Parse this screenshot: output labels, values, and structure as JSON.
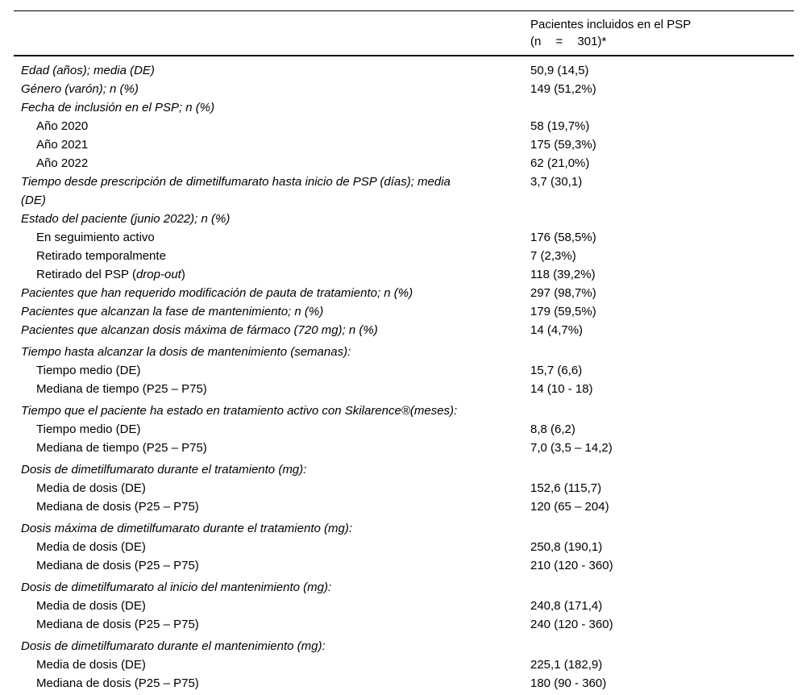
{
  "table": {
    "header": {
      "col2_line1": "Pacientes incluidos en el PSP",
      "col2_line2": "(n = 301)*"
    },
    "rows": [
      {
        "label": "Edad (años); media (DE)",
        "value": "50,9 (14,5)",
        "level": "main"
      },
      {
        "label": "Género (varón); n (%)",
        "value": "149 (51,2%)",
        "level": "main"
      },
      {
        "label": "Fecha de inclusión en el PSP; n (%)",
        "value": "",
        "level": "main"
      },
      {
        "label": "Año 2020",
        "value": "58 (19,7%)",
        "level": "sub"
      },
      {
        "label": "Año 2021",
        "value": "175 (59,3%)",
        "level": "sub"
      },
      {
        "label": "Año 2022",
        "value": "62 (21,0%)",
        "level": "sub"
      },
      {
        "label": "Tiempo desde prescripción de dimetilfumarato hasta inicio de PSP (días); media\n(DE)",
        "value": "3,7 (30,1)",
        "level": "main"
      },
      {
        "label": "Estado del paciente (junio 2022); n (%)",
        "value": "",
        "level": "main"
      },
      {
        "label": "En seguimiento activo",
        "value": "176 (58,5%)",
        "level": "sub"
      },
      {
        "label": "Retirado temporalmente",
        "value": "7 (2,3%)",
        "level": "sub"
      },
      {
        "label": "Retirado del PSP (drop-out)",
        "value": "118 (39,2%)",
        "level": "sub",
        "italic_part": "drop-out"
      },
      {
        "label": "Pacientes que han requerido modificación de pauta de tratamiento; n (%)",
        "value": "297 (98,7%)",
        "level": "main"
      },
      {
        "label": "Pacientes que alcanzan la fase de mantenimiento; n (%)",
        "value": "179 (59,5%)",
        "level": "main"
      },
      {
        "label": "Pacientes que alcanzan dosis máxima de fármaco (720 mg); n (%)",
        "value": "14 (4,7%)",
        "level": "main"
      },
      {
        "label": "Tiempo hasta alcanzar la dosis de mantenimiento (semanas):",
        "value": "",
        "level": "main",
        "section_gap": true
      },
      {
        "label": "Tiempo medio (DE)",
        "value": "15,7 (6,6)",
        "level": "sub"
      },
      {
        "label": "Mediana de tiempo (P25 – P75)",
        "value": "14 (10 - 18)",
        "level": "sub"
      },
      {
        "label": "Tiempo que el paciente ha estado en tratamiento activo con Skilarence®(meses):",
        "value": "",
        "level": "main",
        "section_gap": true
      },
      {
        "label": "Tiempo medio (DE)",
        "value": "8,8 (6,2)",
        "level": "sub"
      },
      {
        "label": "Mediana de tiempo (P25 – P75)",
        "value": "7,0 (3,5 – 14,2)",
        "level": "sub"
      },
      {
        "label": "Dosis de dimetilfumarato durante el tratamiento (mg):",
        "value": "",
        "level": "main",
        "section_gap": true
      },
      {
        "label": "Media de dosis (DE)",
        "value": "152,6 (115,7)",
        "level": "sub"
      },
      {
        "label": "Mediana de dosis (P25 – P75)",
        "value": "120 (65 – 204)",
        "level": "sub"
      },
      {
        "label": "Dosis máxima de dimetilfumarato durante el tratamiento (mg):",
        "value": "",
        "level": "main",
        "section_gap": true
      },
      {
        "label": "Media de dosis (DE)",
        "value": "250,8 (190,1)",
        "level": "sub"
      },
      {
        "label": "Mediana de dosis (P25 – P75)",
        "value": "210 (120 - 360)",
        "level": "sub"
      },
      {
        "label": "Dosis de dimetilfumarato al inicio del mantenimiento (mg):",
        "value": "",
        "level": "main",
        "section_gap": true
      },
      {
        "label": "Media de dosis (DE)",
        "value": "240,8 (171,4)",
        "level": "sub"
      },
      {
        "label": "Mediana de dosis (P25 – P75)",
        "value": "240 (120 - 360)",
        "level": "sub"
      },
      {
        "label": "Dosis de dimetilfumarato durante el mantenimiento (mg):",
        "value": "",
        "level": "main",
        "section_gap": true
      },
      {
        "label": "Media de dosis (DE)",
        "value": "225,1 (182,9)",
        "level": "sub"
      },
      {
        "label": "Mediana de dosis (P25 – P75)",
        "value": "180 (90 - 360)",
        "level": "sub"
      }
    ]
  }
}
